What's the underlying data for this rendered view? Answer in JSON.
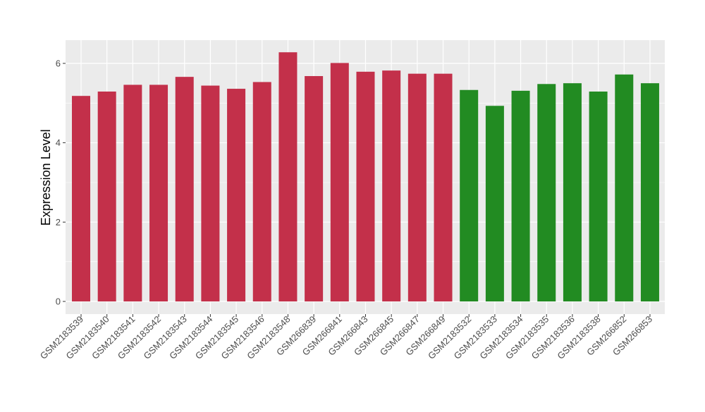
{
  "chart_data": {
    "type": "bar",
    "title": "",
    "xlabel": "",
    "ylabel": "Expression Level",
    "ylim": [
      0,
      6.6
    ],
    "yticks": [
      0,
      2,
      4,
      6
    ],
    "grid": true,
    "categories": [
      "GSM2183539",
      "GSM2183540",
      "GSM2183541",
      "GSM2183542",
      "GSM2183543",
      "GSM2183544",
      "GSM2183545",
      "GSM2183546",
      "GSM2183548",
      "GSM266839",
      "GSM266841",
      "GSM266843",
      "GSM266845",
      "GSM266847",
      "GSM266849",
      "GSM2183532",
      "GSM2183533",
      "GSM2183534",
      "GSM2183535",
      "GSM2183536",
      "GSM2183538",
      "GSM266852",
      "GSM266853"
    ],
    "values": [
      5.18,
      5.29,
      5.46,
      5.46,
      5.66,
      5.44,
      5.36,
      5.53,
      6.28,
      5.68,
      6.01,
      5.79,
      5.82,
      5.74,
      5.74,
      5.33,
      4.93,
      5.31,
      5.48,
      5.5,
      5.29,
      5.72,
      5.5
    ],
    "bar_colors": [
      "#c3304a",
      "#c3304a",
      "#c3304a",
      "#c3304a",
      "#c3304a",
      "#c3304a",
      "#c3304a",
      "#c3304a",
      "#c3304a",
      "#c3304a",
      "#c3304a",
      "#c3304a",
      "#c3304a",
      "#c3304a",
      "#c3304a",
      "#228b22",
      "#228b22",
      "#228b22",
      "#228b22",
      "#228b22",
      "#228b22",
      "#228b22",
      "#228b22"
    ],
    "panel_background": "#ebebeb",
    "gridline_color": "#ffffff"
  }
}
